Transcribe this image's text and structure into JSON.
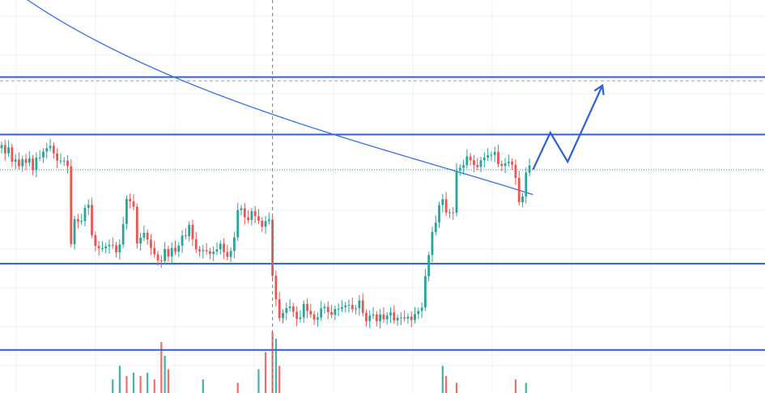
{
  "chart_data": {
    "type": "candlestick",
    "x_index_range": [
      0,
      220
    ],
    "ylim": [
      3.0,
      107.0
    ],
    "grid": true,
    "colors": {
      "up": "#26a69a",
      "down": "#ef5350",
      "ma": "#3b6ee8",
      "levels": "#2f5fd6",
      "projection": "#2f5fd6",
      "grid": "#eceff3",
      "crosshair": "#7a7a7a",
      "last_price": "#26a69a",
      "target": "#9e9e9e"
    },
    "horizontal_levels": [
      86.6,
      71.4,
      37.2,
      14.4
    ],
    "last_price_level": 62.1,
    "target_level": 85.6,
    "crosshair_x": 78,
    "candles_close": [
      68.6,
      66.4,
      68.0,
      64.2,
      64.8,
      63.0,
      64.9,
      63.9,
      65.1,
      62.0,
      65.3,
      65.3,
      66.9,
      67.8,
      68.4,
      66.4,
      64.5,
      64.5,
      64.5,
      63.0,
      42.4,
      49.0,
      48.4,
      48.5,
      52.0,
      52.8,
      44.8,
      41.9,
      41.3,
      41.3,
      41.8,
      42.2,
      42.1,
      40.2,
      42.3,
      47.7,
      54.4,
      53.7,
      52.3,
      42.6,
      44.1,
      45.4,
      43.6,
      41.4,
      39.7,
      38.1,
      38.0,
      41.1,
      39.1,
      41.4,
      40.4,
      42.0,
      44.7,
      44.5,
      47.5,
      43.7,
      41.0,
      40.5,
      40.8,
      40.5,
      39.8,
      40.4,
      41.0,
      42.5,
      40.3,
      39.0,
      40.6,
      44.2,
      51.4,
      51.9,
      49.5,
      48.8,
      51.1,
      49.8,
      48.6,
      47.0,
      48.5,
      48.9,
      34.0,
      27.8,
      22.8,
      24.2,
      25.5,
      25.9,
      24.5,
      22.6,
      23.0,
      26.6,
      24.7,
      23.8,
      22.4,
      23.0,
      25.4,
      25.8,
      24.4,
      23.7,
      25.2,
      25.3,
      25.7,
      26.2,
      26.3,
      25.2,
      25.4,
      27.5,
      24.2,
      22.0,
      23.5,
      23.8,
      22.0,
      23.8,
      22.5,
      23.5,
      24.3,
      22.2,
      22.9,
      23.0,
      22.7,
      23.2,
      22.3,
      23.9,
      24.7,
      25.6,
      33.9,
      39.5,
      45.6,
      48.1,
      52.7,
      54.3,
      50.7,
      50.8,
      50.7,
      61.9,
      62.6,
      63.3,
      65.6,
      64.6,
      63.3,
      62.8,
      64.6,
      65.3,
      65.9,
      66.0,
      66.8,
      63.6,
      63.1,
      63.8,
      64.2,
      63.4,
      59.9,
      53.5,
      55.0,
      61.3,
      63.2
    ],
    "moving_average_endpoints": {
      "start": [
        0,
        112.0
      ],
      "end": [
        153,
        55.5
      ]
    },
    "projection_path": [
      [
        153,
        62.1
      ],
      [
        158,
        71.9
      ],
      [
        163,
        64.2
      ],
      [
        173,
        84.4
      ]
    ],
    "volume_bars": [
      {
        "x": 32,
        "value": 4,
        "dir": "up"
      },
      {
        "x": 34,
        "value": 8,
        "dir": "up"
      },
      {
        "x": 36,
        "value": 5,
        "dir": "down"
      },
      {
        "x": 38,
        "value": 6,
        "dir": "up"
      },
      {
        "x": 40,
        "value": 5,
        "dir": "down"
      },
      {
        "x": 42,
        "value": 6,
        "dir": "up"
      },
      {
        "x": 44,
        "value": 4,
        "dir": "down"
      },
      {
        "x": 46,
        "value": 15,
        "dir": "down"
      },
      {
        "x": 47,
        "value": 11,
        "dir": "up"
      },
      {
        "x": 48,
        "value": 7,
        "dir": "down"
      },
      {
        "x": 58,
        "value": 4,
        "dir": "up"
      },
      {
        "x": 68,
        "value": 3,
        "dir": "down"
      },
      {
        "x": 74,
        "value": 7,
        "dir": "up"
      },
      {
        "x": 76,
        "value": 12,
        "dir": "down"
      },
      {
        "x": 78,
        "value": 18,
        "dir": "down"
      },
      {
        "x": 79,
        "value": 16,
        "dir": "up"
      },
      {
        "x": 80,
        "value": 8,
        "dir": "down"
      },
      {
        "x": 127,
        "value": 8,
        "dir": "up"
      },
      {
        "x": 128,
        "value": 5,
        "dir": "down"
      },
      {
        "x": 131,
        "value": 3,
        "dir": "down"
      },
      {
        "x": 148,
        "value": 4,
        "dir": "down"
      },
      {
        "x": 151,
        "value": 3,
        "dir": "up"
      }
    ]
  }
}
